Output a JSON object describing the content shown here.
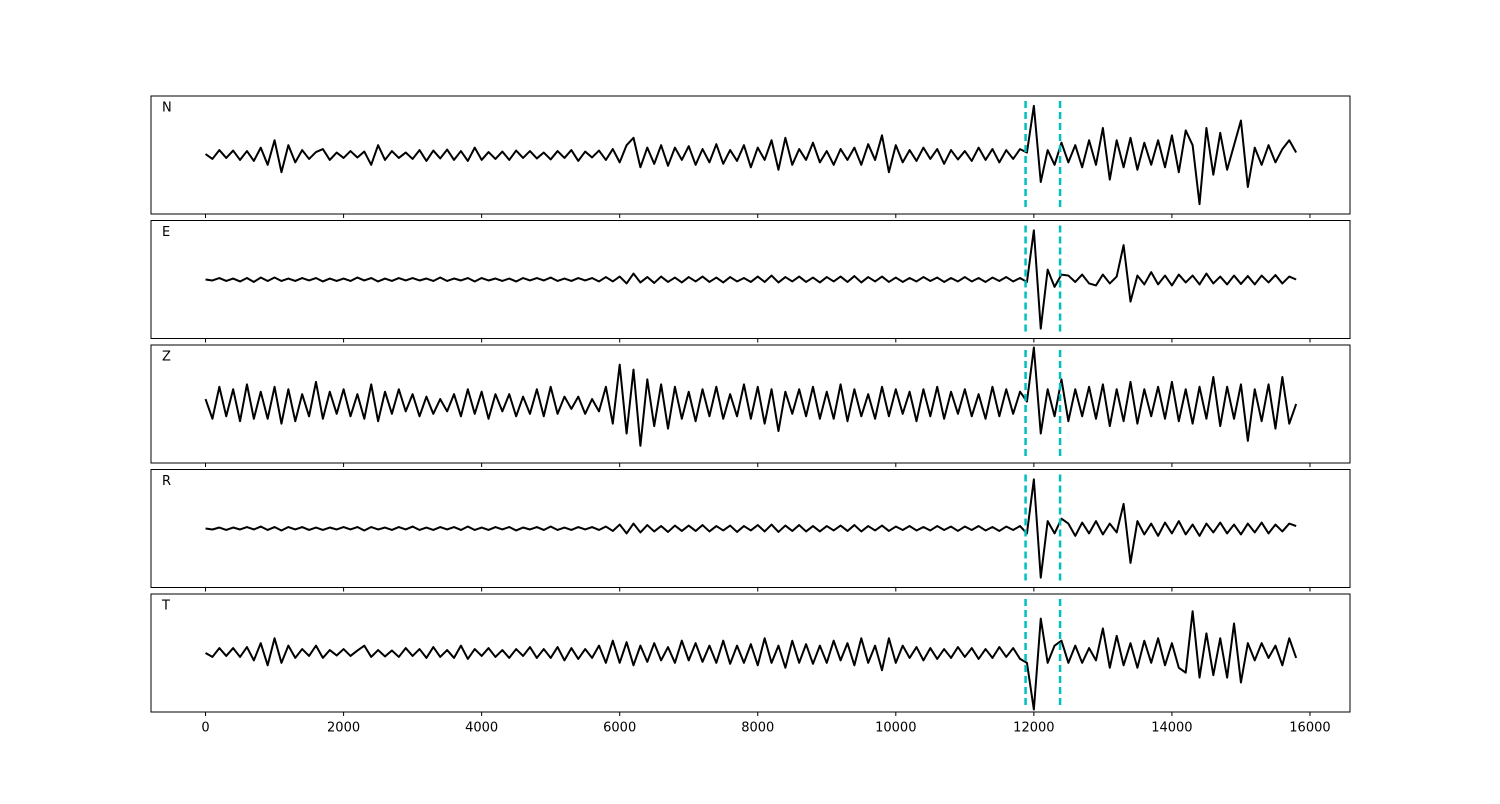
{
  "chart_data": {
    "type": "line",
    "x": [
      0,
      100,
      200,
      300,
      400,
      500,
      600,
      700,
      800,
      900,
      1000,
      1100,
      1200,
      1300,
      1400,
      1500,
      1600,
      1700,
      1800,
      1900,
      2000,
      2100,
      2200,
      2300,
      2400,
      2500,
      2600,
      2700,
      2800,
      2900,
      3000,
      3100,
      3200,
      3300,
      3400,
      3500,
      3600,
      3700,
      3800,
      3900,
      4000,
      4100,
      4200,
      4300,
      4400,
      4500,
      4600,
      4700,
      4800,
      4900,
      5000,
      5100,
      5200,
      5300,
      5400,
      5500,
      5600,
      5700,
      5800,
      5900,
      6000,
      6100,
      6200,
      6300,
      6400,
      6500,
      6600,
      6700,
      6800,
      6900,
      7000,
      7100,
      7200,
      7300,
      7400,
      7500,
      7600,
      7700,
      7800,
      7900,
      8000,
      8100,
      8200,
      8300,
      8400,
      8500,
      8600,
      8700,
      8800,
      8900,
      9000,
      9100,
      9200,
      9300,
      9400,
      9500,
      9600,
      9700,
      9800,
      9900,
      10000,
      10100,
      10200,
      10300,
      10400,
      10500,
      10600,
      10700,
      10800,
      10900,
      11000,
      11100,
      11200,
      11300,
      11400,
      11500,
      11600,
      11700,
      11800,
      11900,
      12000,
      12100,
      12200,
      12300,
      12400,
      12500,
      12600,
      12700,
      12800,
      12900,
      13000,
      13100,
      13200,
      13300,
      13400,
      13500,
      13600,
      13700,
      13800,
      13900,
      14000,
      14100,
      14200,
      14300,
      14400,
      14500,
      14600,
      14700,
      14800,
      14900,
      15000,
      15100,
      15200,
      15300,
      15400,
      15500,
      15600,
      15700,
      15800
    ],
    "xlim": [
      -790,
      16580
    ],
    "xticks": [
      0,
      2000,
      4000,
      6000,
      8000,
      10000,
      12000,
      14000,
      16000
    ],
    "ylim": [
      -1.2,
      1.2
    ],
    "vlines": [
      11880,
      12380
    ],
    "vline_color": "#00bfbf",
    "series": [
      {
        "name": "N",
        "color": "#000000",
        "values": [
          0.02,
          -0.08,
          0.1,
          -0.06,
          0.09,
          -0.1,
          0.08,
          -0.12,
          0.15,
          -0.2,
          0.3,
          -0.35,
          0.2,
          -0.15,
          0.1,
          -0.08,
          0.06,
          0.12,
          -0.1,
          0.05,
          -0.06,
          0.08,
          -0.05,
          0.07,
          -0.2,
          0.2,
          -0.1,
          0.08,
          -0.06,
          0.05,
          -0.08,
          0.1,
          -0.12,
          0.09,
          -0.07,
          0.11,
          -0.1,
          0.08,
          -0.12,
          0.15,
          -0.1,
          0.06,
          -0.08,
          0.07,
          -0.1,
          0.09,
          -0.06,
          0.08,
          -0.07,
          0.05,
          -0.09,
          0.08,
          -0.06,
          0.1,
          -0.12,
          0.07,
          -0.05,
          0.09,
          -0.1,
          0.12,
          -0.15,
          0.2,
          0.35,
          -0.25,
          0.15,
          -0.18,
          0.2,
          -0.22,
          0.15,
          -0.1,
          0.18,
          -0.2,
          0.12,
          -0.15,
          0.22,
          -0.18,
          0.1,
          -0.12,
          0.2,
          -0.25,
          0.15,
          -0.1,
          0.3,
          -0.3,
          0.35,
          -0.2,
          0.12,
          -0.1,
          0.25,
          -0.15,
          0.08,
          -0.2,
          0.12,
          -0.1,
          0.15,
          -0.2,
          0.22,
          -0.1,
          0.4,
          -0.35,
          0.2,
          -0.15,
          0.1,
          -0.12,
          0.15,
          -0.08,
          0.12,
          -0.18,
          0.1,
          -0.09,
          0.08,
          -0.12,
          0.15,
          -0.1,
          0.12,
          -0.15,
          0.1,
          -0.08,
          0.12,
          0.05,
          1.0,
          -0.55,
          0.1,
          -0.2,
          0.25,
          -0.15,
          0.2,
          -0.25,
          0.3,
          -0.2,
          0.55,
          -0.5,
          0.3,
          -0.25,
          0.35,
          -0.3,
          0.25,
          -0.2,
          0.3,
          -0.25,
          0.4,
          -0.35,
          0.5,
          0.2,
          -1.0,
          0.55,
          -0.4,
          0.45,
          -0.3,
          0.2,
          0.7,
          -0.65,
          0.15,
          -0.2,
          0.2,
          -0.15,
          0.12,
          0.3,
          0.05
        ]
      },
      {
        "name": "E",
        "color": "#000000",
        "values": [
          0.0,
          -0.02,
          0.03,
          -0.03,
          0.02,
          -0.04,
          0.03,
          -0.05,
          0.04,
          -0.03,
          0.04,
          -0.03,
          0.02,
          -0.03,
          0.03,
          -0.02,
          0.03,
          -0.04,
          0.02,
          -0.03,
          0.02,
          -0.03,
          0.04,
          -0.02,
          0.03,
          -0.04,
          0.02,
          -0.03,
          0.03,
          -0.02,
          0.03,
          -0.02,
          0.02,
          -0.03,
          0.04,
          -0.03,
          0.02,
          -0.02,
          0.03,
          -0.04,
          0.03,
          -0.02,
          0.02,
          -0.03,
          0.02,
          -0.04,
          0.03,
          -0.02,
          0.03,
          -0.02,
          0.04,
          -0.03,
          0.02,
          -0.03,
          0.03,
          -0.02,
          0.03,
          -0.04,
          0.05,
          -0.04,
          0.06,
          -0.08,
          0.12,
          -0.06,
          0.05,
          -0.07,
          0.06,
          -0.05,
          0.04,
          -0.06,
          0.05,
          -0.04,
          0.06,
          -0.05,
          0.04,
          -0.06,
          0.05,
          -0.04,
          0.03,
          -0.05,
          0.06,
          -0.05,
          0.08,
          -0.06,
          0.05,
          -0.04,
          0.06,
          -0.05,
          0.04,
          -0.06,
          0.05,
          -0.04,
          0.06,
          -0.05,
          0.07,
          -0.06,
          0.05,
          -0.04,
          0.06,
          -0.05,
          0.04,
          -0.05,
          0.03,
          -0.04,
          0.05,
          -0.03,
          0.04,
          -0.05,
          0.03,
          -0.04,
          0.05,
          -0.04,
          0.03,
          -0.05,
          0.04,
          -0.03,
          0.05,
          -0.04,
          0.03,
          -0.05,
          1.0,
          -1.0,
          0.2,
          -0.15,
          0.1,
          0.08,
          -0.05,
          0.1,
          -0.08,
          -0.12,
          0.1,
          -0.08,
          0.06,
          0.7,
          -0.45,
          0.08,
          -0.1,
          0.15,
          -0.1,
          0.08,
          -0.12,
          0.1,
          -0.06,
          0.08,
          -0.1,
          0.12,
          -0.08,
          0.06,
          -0.1,
          0.08,
          -0.09,
          0.07,
          -0.1,
          0.08,
          -0.06,
          0.09,
          -0.08,
          0.06,
          0.0
        ]
      },
      {
        "name": "Z",
        "color": "#000000",
        "values": [
          0.1,
          -0.3,
          0.35,
          -0.25,
          0.3,
          -0.35,
          0.4,
          -0.3,
          0.25,
          -0.3,
          0.35,
          -0.4,
          0.3,
          -0.35,
          0.2,
          -0.25,
          0.45,
          -0.3,
          0.25,
          -0.2,
          0.3,
          -0.25,
          0.2,
          -0.3,
          0.4,
          -0.35,
          0.25,
          -0.2,
          0.3,
          -0.15,
          0.2,
          -0.25,
          0.15,
          -0.2,
          0.1,
          -0.15,
          0.2,
          -0.25,
          0.3,
          -0.2,
          0.25,
          -0.3,
          0.2,
          -0.15,
          0.2,
          -0.25,
          0.15,
          -0.2,
          0.3,
          -0.25,
          0.35,
          -0.2,
          0.15,
          -0.1,
          0.15,
          -0.2,
          0.1,
          -0.15,
          0.35,
          -0.4,
          0.8,
          -0.6,
          0.7,
          -0.85,
          0.5,
          -0.45,
          0.4,
          -0.5,
          0.35,
          -0.3,
          0.25,
          -0.35,
          0.3,
          -0.25,
          0.35,
          -0.3,
          0.2,
          -0.25,
          0.4,
          -0.3,
          0.35,
          -0.4,
          0.3,
          -0.55,
          0.25,
          -0.2,
          0.3,
          -0.25,
          0.35,
          -0.3,
          0.25,
          -0.3,
          0.4,
          -0.35,
          0.3,
          -0.25,
          0.2,
          -0.3,
          0.35,
          -0.25,
          0.3,
          -0.2,
          0.25,
          -0.35,
          0.3,
          -0.25,
          0.35,
          -0.3,
          0.25,
          -0.2,
          0.3,
          -0.25,
          0.2,
          -0.3,
          0.35,
          -0.25,
          0.3,
          -0.2,
          0.25,
          0.05,
          1.15,
          -0.6,
          0.3,
          -0.25,
          0.5,
          -0.35,
          0.3,
          -0.25,
          0.35,
          -0.3,
          0.4,
          -0.45,
          0.3,
          -0.35,
          0.45,
          -0.4,
          0.3,
          -0.25,
          0.35,
          -0.3,
          0.45,
          -0.35,
          0.3,
          -0.4,
          0.35,
          -0.3,
          0.55,
          -0.45,
          0.35,
          -0.3,
          0.4,
          -0.75,
          0.3,
          -0.35,
          0.4,
          -0.5,
          0.55,
          -0.4,
          0.0
        ]
      },
      {
        "name": "R",
        "color": "#000000",
        "values": [
          0.0,
          -0.02,
          0.02,
          -0.03,
          0.02,
          -0.02,
          0.03,
          -0.02,
          0.04,
          -0.03,
          0.03,
          -0.04,
          0.03,
          -0.02,
          0.03,
          -0.03,
          0.02,
          -0.03,
          0.02,
          -0.02,
          0.03,
          -0.02,
          0.03,
          -0.04,
          0.03,
          -0.02,
          0.02,
          -0.03,
          0.03,
          -0.02,
          0.04,
          -0.03,
          0.02,
          -0.03,
          0.03,
          -0.02,
          0.03,
          -0.03,
          0.04,
          -0.03,
          0.02,
          -0.03,
          0.03,
          -0.02,
          0.03,
          -0.04,
          0.02,
          -0.02,
          0.03,
          -0.03,
          0.04,
          -0.03,
          0.02,
          -0.03,
          0.03,
          -0.02,
          0.03,
          -0.03,
          0.04,
          -0.05,
          0.08,
          -0.1,
          0.1,
          -0.08,
          0.07,
          -0.06,
          0.05,
          -0.07,
          0.06,
          -0.05,
          0.06,
          -0.05,
          0.07,
          -0.06,
          0.05,
          -0.04,
          0.06,
          -0.07,
          0.05,
          -0.04,
          0.07,
          -0.06,
          0.08,
          -0.07,
          0.06,
          -0.05,
          0.07,
          -0.06,
          0.05,
          -0.06,
          0.05,
          -0.04,
          0.06,
          -0.05,
          0.07,
          -0.06,
          0.05,
          -0.04,
          0.06,
          -0.05,
          0.04,
          -0.03,
          0.05,
          -0.04,
          0.03,
          -0.04,
          0.05,
          -0.03,
          0.04,
          -0.05,
          0.04,
          -0.03,
          0.05,
          -0.04,
          0.03,
          -0.05,
          0.04,
          -0.03,
          0.05,
          -0.1,
          1.0,
          -1.0,
          0.15,
          -0.1,
          0.2,
          0.1,
          -0.15,
          0.12,
          -0.1,
          0.15,
          -0.12,
          0.1,
          -0.08,
          0.5,
          -0.7,
          0.15,
          -0.12,
          0.1,
          -0.15,
          0.12,
          -0.1,
          0.15,
          -0.12,
          0.08,
          -0.15,
          0.1,
          -0.08,
          0.12,
          -0.1,
          0.08,
          -0.12,
          0.1,
          -0.08,
          0.12,
          -0.1,
          0.08,
          -0.06,
          0.1,
          0.05
        ]
      },
      {
        "name": "T",
        "color": "#000000",
        "values": [
          0.0,
          -0.08,
          0.1,
          -0.06,
          0.1,
          -0.08,
          0.12,
          -0.15,
          0.2,
          -0.25,
          0.3,
          -0.2,
          0.15,
          -0.1,
          0.08,
          -0.06,
          0.15,
          -0.1,
          0.06,
          -0.05,
          0.08,
          -0.06,
          0.05,
          0.15,
          -0.08,
          0.06,
          -0.07,
          0.05,
          -0.08,
          0.1,
          -0.06,
          0.08,
          -0.1,
          0.12,
          -0.08,
          0.06,
          -0.1,
          0.15,
          -0.12,
          0.08,
          -0.06,
          0.1,
          -0.08,
          0.06,
          -0.1,
          0.08,
          -0.06,
          0.12,
          -0.1,
          0.08,
          -0.1,
          0.12,
          -0.15,
          0.1,
          -0.12,
          0.08,
          -0.1,
          0.15,
          -0.2,
          0.25,
          -0.2,
          0.22,
          -0.25,
          0.15,
          -0.18,
          0.2,
          -0.15,
          0.12,
          -0.2,
          0.25,
          -0.15,
          0.2,
          -0.18,
          0.15,
          -0.2,
          0.25,
          -0.22,
          0.15,
          -0.2,
          0.18,
          -0.25,
          0.3,
          -0.2,
          0.15,
          -0.3,
          0.25,
          -0.2,
          0.18,
          -0.22,
          0.15,
          -0.2,
          0.25,
          -0.15,
          0.2,
          -0.25,
          0.3,
          -0.2,
          0.15,
          -0.35,
          0.3,
          -0.2,
          0.15,
          -0.1,
          0.12,
          -0.15,
          0.1,
          -0.12,
          0.08,
          -0.1,
          0.12,
          -0.08,
          0.1,
          -0.12,
          0.08,
          -0.1,
          0.12,
          -0.08,
          0.1,
          -0.12,
          -0.2,
          -1.15,
          0.7,
          -0.2,
          0.15,
          0.25,
          -0.2,
          0.15,
          -0.2,
          0.1,
          -0.15,
          0.5,
          -0.3,
          0.35,
          -0.25,
          0.2,
          -0.3,
          0.25,
          -0.2,
          0.3,
          -0.25,
          0.2,
          -0.3,
          -0.4,
          0.85,
          -0.5,
          0.4,
          -0.45,
          0.3,
          -0.5,
          0.6,
          -0.6,
          0.2,
          -0.15,
          0.2,
          -0.1,
          0.15,
          -0.25,
          0.3,
          -0.1
        ]
      }
    ]
  }
}
